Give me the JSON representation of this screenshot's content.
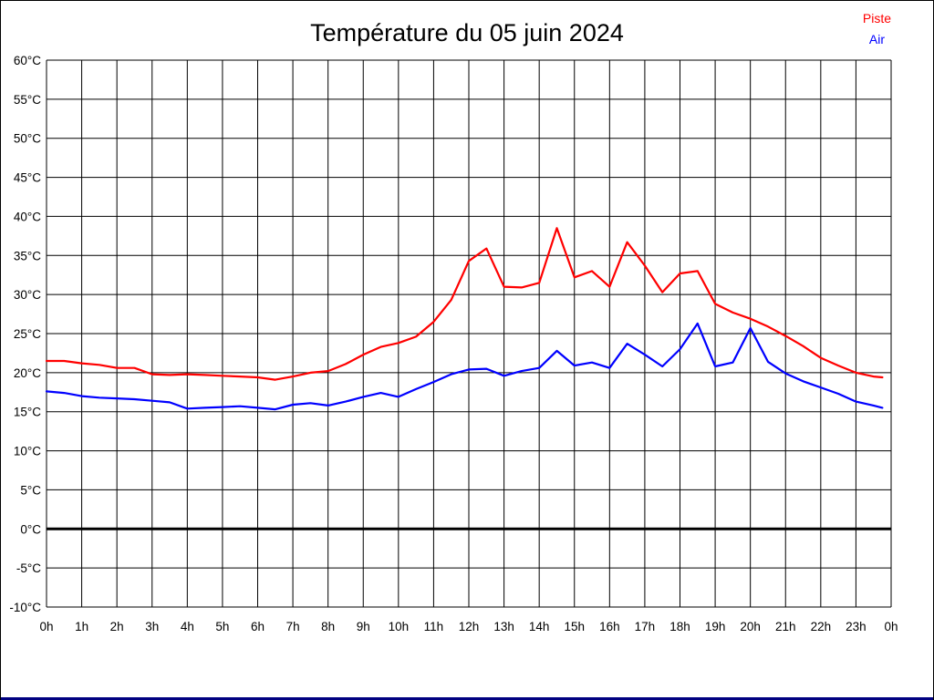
{
  "page": {
    "title": "Température du 05 juin 2024",
    "background": "#ffffff",
    "frame_color": "#000000",
    "bottom_bar_color": "#000080"
  },
  "legend": {
    "position": "top-right",
    "items": [
      {
        "label": "Piste",
        "color": "#ff0000"
      },
      {
        "label": "Air",
        "color": "#0000ff"
      }
    ]
  },
  "chart_data": {
    "type": "line",
    "title": "Température du 05 juin 2024",
    "xlabel": "",
    "ylabel": "",
    "x_unit": "hour_of_day",
    "y_unit": "°C",
    "xlim": [
      0,
      24
    ],
    "ylim": [
      -10,
      60
    ],
    "x_tick_step": 1,
    "y_tick_step": 5,
    "x_tick_labels": [
      "0h",
      "1h",
      "2h",
      "3h",
      "4h",
      "5h",
      "6h",
      "7h",
      "8h",
      "9h",
      "10h",
      "11h",
      "12h",
      "13h",
      "14h",
      "15h",
      "16h",
      "17h",
      "18h",
      "19h",
      "20h",
      "21h",
      "22h",
      "23h",
      "0h"
    ],
    "y_tick_labels": [
      "60°C",
      "55°C",
      "50°C",
      "45°C",
      "40°C",
      "35°C",
      "30°C",
      "25°C",
      "20°C",
      "15°C",
      "10°C",
      "5°C",
      "0°C",
      "-5°C",
      "-10°C"
    ],
    "grid": true,
    "grid_color": "#000000",
    "zero_line": {
      "value": 0,
      "color": "#000000",
      "width": 3
    },
    "legend_position": "top-right",
    "x": [
      0,
      0.5,
      1,
      1.5,
      2,
      2.5,
      3,
      3.5,
      4,
      4.5,
      5,
      5.5,
      6,
      6.5,
      7,
      7.5,
      8,
      8.5,
      9,
      9.5,
      10,
      10.5,
      11,
      11.5,
      12,
      12.5,
      13,
      13.5,
      14,
      14.5,
      15,
      15.5,
      16,
      16.5,
      17,
      17.5,
      18,
      18.5,
      19,
      19.5,
      20,
      20.5,
      21,
      21.5,
      22,
      22.5,
      23,
      23.5,
      23.75
    ],
    "series": [
      {
        "name": "Piste",
        "color": "#ff0000",
        "line_width": 2.2,
        "values": [
          21.5,
          21.5,
          21.2,
          21.0,
          20.6,
          20.6,
          19.8,
          19.7,
          19.8,
          19.7,
          19.6,
          19.5,
          19.4,
          19.1,
          19.5,
          20.0,
          20.2,
          21.1,
          22.3,
          23.3,
          23.8,
          24.6,
          26.5,
          29.3,
          34.3,
          35.9,
          31.0,
          30.9,
          31.5,
          38.5,
          32.2,
          33.0,
          31.0,
          36.7,
          33.7,
          30.3,
          32.7,
          33.0,
          28.8,
          27.7,
          26.9,
          25.9,
          24.7,
          23.4,
          21.9,
          20.9,
          20.0,
          19.5,
          19.4
        ]
      },
      {
        "name": "Air",
        "color": "#0000ff",
        "line_width": 2.2,
        "values": [
          17.6,
          17.4,
          17.0,
          16.8,
          16.7,
          16.6,
          16.4,
          16.2,
          15.4,
          15.5,
          15.6,
          15.7,
          15.5,
          15.3,
          15.9,
          16.1,
          15.8,
          16.3,
          16.9,
          17.4,
          16.9,
          17.9,
          18.8,
          19.8,
          20.4,
          20.5,
          19.6,
          20.2,
          20.6,
          22.8,
          20.9,
          21.3,
          20.6,
          23.7,
          22.3,
          20.8,
          23.0,
          26.3,
          20.8,
          21.3,
          25.7,
          21.4,
          19.9,
          18.9,
          18.1,
          17.3,
          16.3,
          15.8,
          15.5
        ]
      }
    ]
  }
}
